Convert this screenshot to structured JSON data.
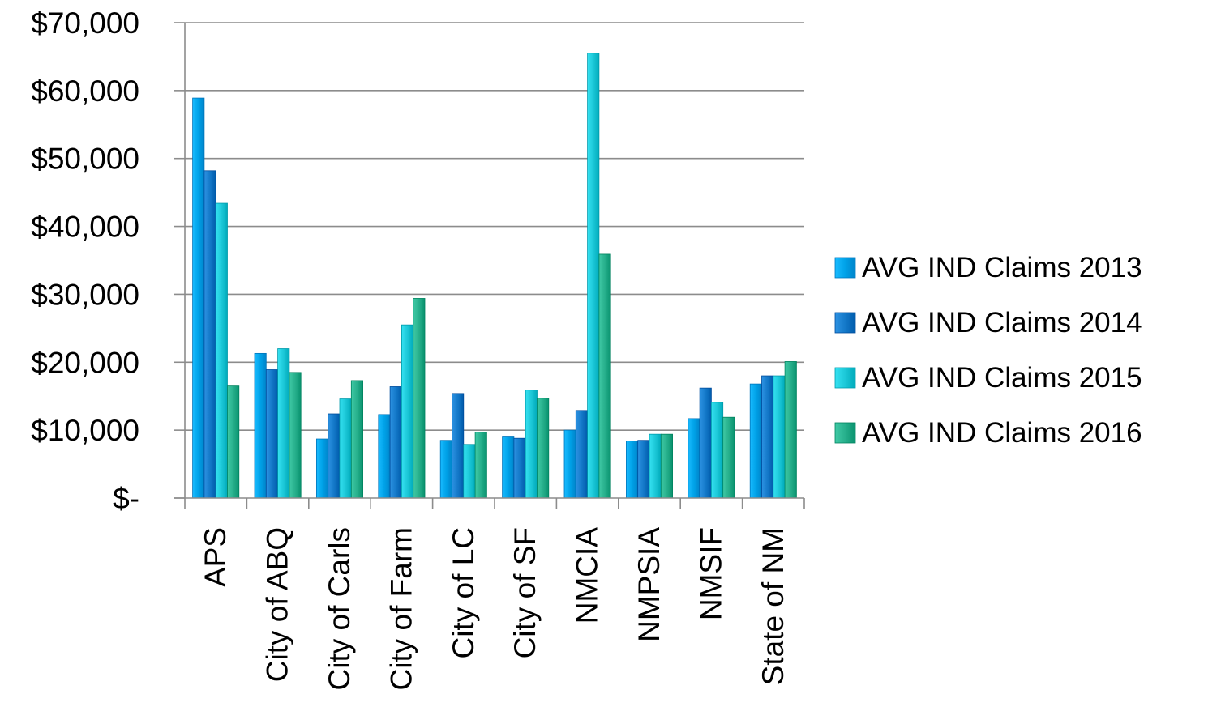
{
  "chart_data": {
    "type": "bar",
    "title": "",
    "xlabel": "",
    "ylabel": "",
    "categories": [
      "APS",
      "City of ABQ",
      "City of Carls",
      "City of Farm",
      "City of LC",
      "City of SF",
      "NMCIA",
      "NMPSIA",
      "NMSIF",
      "State of NM"
    ],
    "series": [
      {
        "name": "AVG IND Claims 2013",
        "color": "#00A2E8",
        "values": [
          58900,
          21300,
          8700,
          12300,
          8500,
          9000,
          10000,
          8400,
          11700,
          16800
        ]
      },
      {
        "name": "AVG IND Claims 2014",
        "color": "#1479C9",
        "values": [
          48200,
          18900,
          12400,
          16400,
          15400,
          8800,
          12900,
          8500,
          16200,
          18000
        ]
      },
      {
        "name": "AVG IND Claims 2015",
        "color": "#1CC8D8",
        "values": [
          43400,
          22000,
          14600,
          25500,
          7900,
          15900,
          65500,
          9400,
          14100,
          18000
        ]
      },
      {
        "name": "AVG IND Claims 2016",
        "color": "#27B08C",
        "values": [
          16500,
          18500,
          17300,
          29400,
          9700,
          14700,
          35900,
          9400,
          11900,
          20100
        ]
      }
    ],
    "ylim": [
      0,
      70000
    ],
    "yticks": [
      0,
      10000,
      20000,
      30000,
      40000,
      50000,
      60000,
      70000
    ],
    "ytick_labels": [
      "$-",
      "$10,000",
      "$20,000",
      "$30,000",
      "$40,000",
      "$50,000",
      "$60,000",
      "$70,000"
    ],
    "grid": true,
    "legend_position": "right"
  }
}
